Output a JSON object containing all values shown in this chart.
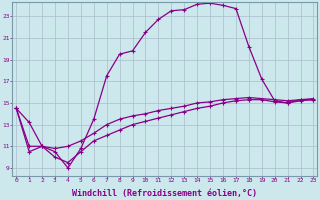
{
  "background_color": "#cce8ec",
  "line_color": "#880088",
  "grid_color": "#aabbcc",
  "xlabel": "Windchill (Refroidissement éolien,°C)",
  "xlabel_fontsize": 6.0,
  "ytick_values": [
    9,
    11,
    13,
    15,
    17,
    19,
    21,
    23
  ],
  "xlim": [
    -0.3,
    23.3
  ],
  "ylim": [
    8.3,
    24.3
  ],
  "curve1_x": [
    0,
    1,
    2,
    3,
    4,
    5,
    6,
    7,
    8,
    9,
    10,
    11,
    12,
    13,
    14,
    15,
    16,
    17,
    18,
    19,
    20,
    21,
    22,
    23
  ],
  "curve1_y": [
    14.5,
    13.2,
    11.0,
    10.5,
    9.0,
    10.8,
    13.5,
    17.5,
    19.5,
    19.8,
    21.5,
    22.7,
    23.5,
    23.6,
    24.1,
    24.2,
    24.0,
    23.7,
    20.2,
    17.2,
    15.2,
    15.0,
    15.3,
    15.3
  ],
  "curve2_x": [
    0,
    1,
    2,
    3,
    4,
    5,
    6,
    7,
    8,
    9,
    10,
    11,
    12,
    13,
    14,
    15,
    16,
    17,
    18,
    20,
    21,
    22,
    23
  ],
  "curve2_y": [
    14.5,
    11.0,
    11.0,
    10.8,
    11.0,
    11.5,
    12.2,
    13.0,
    13.5,
    13.8,
    14.0,
    14.3,
    14.5,
    14.7,
    15.0,
    15.1,
    15.3,
    15.4,
    15.5,
    15.3,
    15.2,
    15.3,
    15.4
  ],
  "curve3_x": [
    0,
    1,
    2,
    3,
    4,
    5,
    6,
    7,
    8,
    9,
    10,
    11,
    12,
    13,
    14,
    15,
    16,
    17,
    18,
    19,
    20,
    21,
    22,
    23
  ],
  "curve3_y": [
    14.5,
    10.5,
    11.0,
    10.0,
    9.5,
    10.5,
    11.5,
    12.0,
    12.5,
    13.0,
    13.3,
    13.6,
    13.9,
    14.2,
    14.5,
    14.7,
    15.0,
    15.2,
    15.3,
    15.3,
    15.1,
    15.0,
    15.2,
    15.3
  ],
  "marker": "+",
  "markersize": 3.5,
  "linewidth": 0.9
}
